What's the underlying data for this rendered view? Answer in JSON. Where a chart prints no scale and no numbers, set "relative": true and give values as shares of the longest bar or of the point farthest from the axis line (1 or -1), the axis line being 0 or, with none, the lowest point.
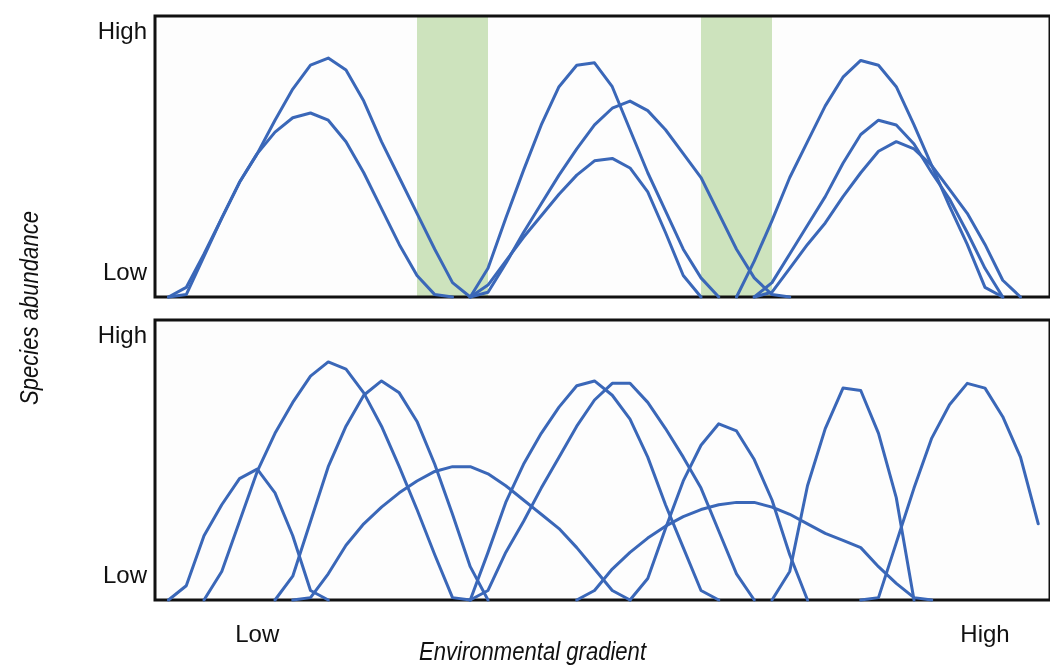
{
  "chart_data": [
    {
      "type": "line",
      "ylabel": "Species abundance",
      "relative": true,
      "annotations": [
        "High",
        "Low"
      ],
      "categories": [
        null,
        null,
        null,
        null,
        null,
        null,
        null,
        null,
        null,
        null,
        null,
        null,
        null,
        null,
        null,
        null,
        null,
        null,
        null,
        null,
        null,
        null,
        null,
        null,
        null,
        null,
        null,
        null,
        null,
        null,
        null,
        null,
        null,
        null,
        null,
        null,
        null,
        null,
        null,
        null,
        null,
        null,
        null,
        null,
        null,
        null,
        null,
        null,
        null,
        null
      ],
      "series": [
        {
          "color": "#3a67b8",
          "values": [
            0,
            0.04,
            0.18,
            0.33,
            0.48,
            0.6,
            0.74,
            0.87,
            0.97,
            1,
            0.95,
            0.82,
            0.65,
            0.5,
            0.35,
            0.2,
            0.06,
            0,
            null,
            null,
            null,
            null,
            null,
            null,
            null,
            null,
            null,
            null,
            null,
            null,
            null,
            null,
            null,
            null,
            null,
            null,
            null,
            null,
            null,
            null,
            null,
            null,
            null,
            null,
            null,
            null,
            null,
            null,
            null,
            null
          ]
        },
        {
          "color": "#3a67b8",
          "values": [
            0,
            0.01,
            0.17,
            0.33,
            0.48,
            0.6,
            0.69,
            0.75,
            0.77,
            0.74,
            0.65,
            0.52,
            0.37,
            0.22,
            0.09,
            0.01,
            0,
            null,
            null,
            null,
            null,
            null,
            null,
            null,
            null,
            null,
            null,
            null,
            null,
            null,
            null,
            null,
            null,
            null,
            null,
            null,
            null,
            null,
            null,
            null,
            null,
            null,
            null,
            null,
            null,
            null,
            null,
            null,
            null,
            null
          ]
        },
        {
          "color": "#3a67b8",
          "values": [
            null,
            null,
            null,
            null,
            null,
            null,
            null,
            null,
            null,
            null,
            null,
            null,
            null,
            null,
            null,
            null,
            null,
            0,
            0.12,
            0.33,
            0.53,
            0.72,
            0.88,
            0.97,
            0.98,
            0.88,
            0.7,
            0.52,
            0.36,
            0.2,
            0.08,
            0,
            null,
            null,
            null,
            null,
            null,
            null,
            null,
            null,
            null,
            null,
            null,
            null,
            null,
            null,
            null,
            null,
            null,
            null
          ]
        },
        {
          "color": "#3a67b8",
          "values": [
            null,
            null,
            null,
            null,
            null,
            null,
            null,
            null,
            null,
            null,
            null,
            null,
            null,
            null,
            null,
            null,
            null,
            0,
            0.02,
            0.14,
            0.27,
            0.39,
            0.51,
            0.62,
            0.72,
            0.79,
            0.82,
            0.78,
            0.7,
            0.6,
            0.5,
            0.35,
            0.2,
            0.08,
            0.01,
            0,
            null,
            null,
            null,
            null,
            null,
            null,
            null,
            null,
            null,
            null,
            null,
            null,
            null,
            null
          ]
        },
        {
          "color": "#3a67b8",
          "values": [
            null,
            null,
            null,
            null,
            null,
            null,
            null,
            null,
            null,
            null,
            null,
            null,
            null,
            null,
            null,
            null,
            null,
            0,
            0.05,
            0.15,
            0.25,
            0.34,
            0.43,
            0.51,
            0.57,
            0.58,
            0.54,
            0.44,
            0.27,
            0.09,
            0,
            null,
            null,
            null,
            null,
            null,
            null,
            null,
            null,
            null,
            null,
            null,
            null,
            null,
            null,
            null,
            null,
            null,
            null,
            null
          ]
        },
        {
          "color": "#3a67b8",
          "values": [
            null,
            null,
            null,
            null,
            null,
            null,
            null,
            null,
            null,
            null,
            null,
            null,
            null,
            null,
            null,
            null,
            null,
            null,
            null,
            null,
            null,
            null,
            null,
            null,
            null,
            null,
            null,
            null,
            null,
            null,
            null,
            null,
            0,
            0.15,
            0.32,
            0.5,
            0.65,
            0.8,
            0.92,
            0.99,
            0.97,
            0.88,
            0.72,
            0.55,
            0.38,
            0.22,
            0.04,
            0,
            null,
            null
          ]
        },
        {
          "color": "#3a67b8",
          "values": [
            null,
            null,
            null,
            null,
            null,
            null,
            null,
            null,
            null,
            null,
            null,
            null,
            null,
            null,
            null,
            null,
            null,
            null,
            null,
            null,
            null,
            null,
            null,
            null,
            null,
            null,
            null,
            null,
            null,
            null,
            null,
            null,
            null,
            0,
            0.06,
            0.18,
            0.3,
            0.42,
            0.56,
            0.68,
            0.74,
            0.72,
            0.64,
            0.52,
            0.41,
            0.27,
            0.12,
            0,
            null,
            null
          ]
        },
        {
          "color": "#3a67b8",
          "values": [
            null,
            null,
            null,
            null,
            null,
            null,
            null,
            null,
            null,
            null,
            null,
            null,
            null,
            null,
            null,
            null,
            null,
            null,
            null,
            null,
            null,
            null,
            null,
            null,
            null,
            null,
            null,
            null,
            null,
            null,
            null,
            null,
            null,
            0,
            0.02,
            0.12,
            0.22,
            0.31,
            0.42,
            0.52,
            0.61,
            0.65,
            0.62,
            0.55,
            0.45,
            0.35,
            0.22,
            0.07,
            0,
            null
          ]
        }
      ]
    },
    {
      "type": "line",
      "xlabel": "Environmental gradient",
      "relative": true,
      "annotations": [
        "High",
        "Low"
      ],
      "categories": [
        null,
        null,
        null,
        null,
        null,
        "Low",
        null,
        null,
        null,
        null,
        null,
        null,
        null,
        null,
        null,
        null,
        null,
        null,
        null,
        null,
        null,
        null,
        null,
        null,
        null,
        null,
        null,
        null,
        null,
        null,
        null,
        null,
        null,
        null,
        null,
        null,
        null,
        null,
        null,
        null,
        null,
        null,
        null,
        null,
        null,
        null,
        "High",
        null,
        null,
        null
      ],
      "series": [
        {
          "color": "#3a67b8",
          "values": [
            0,
            0.06,
            0.27,
            0.4,
            0.51,
            0.55,
            0.45,
            0.27,
            0.04,
            0,
            null,
            null,
            null,
            null,
            null,
            null,
            null,
            null,
            null,
            null,
            null,
            null,
            null,
            null,
            null,
            null,
            null,
            null,
            null,
            null,
            null,
            null,
            null,
            null,
            null,
            null,
            null,
            null,
            null,
            null,
            null,
            null,
            null,
            null,
            null,
            null,
            null,
            null,
            null,
            null
          ]
        },
        {
          "color": "#3a67b8",
          "values": [
            null,
            null,
            0,
            0.12,
            0.33,
            0.54,
            0.7,
            0.83,
            0.94,
            1,
            0.97,
            0.87,
            0.73,
            0.56,
            0.38,
            0.19,
            0.01,
            0,
            null,
            null,
            null,
            null,
            null,
            null,
            null,
            null,
            null,
            null,
            null,
            null,
            null,
            null,
            null,
            null,
            null,
            null,
            null,
            null,
            null,
            null,
            null,
            null,
            null,
            null,
            null,
            null,
            null,
            null,
            null,
            null
          ]
        },
        {
          "color": "#3a67b8",
          "values": [
            null,
            null,
            null,
            null,
            null,
            null,
            0,
            0.1,
            0.33,
            0.56,
            0.73,
            0.86,
            0.92,
            0.87,
            0.75,
            0.57,
            0.36,
            0.14,
            0,
            null,
            null,
            null,
            null,
            null,
            null,
            null,
            null,
            null,
            null,
            null,
            null,
            null,
            null,
            null,
            null,
            null,
            null,
            null,
            null,
            null,
            null,
            null,
            null,
            null,
            null,
            null,
            null,
            null,
            null,
            null
          ]
        },
        {
          "color": "#3a67b8",
          "values": [
            null,
            null,
            null,
            null,
            null,
            null,
            null,
            0,
            0.01,
            0.11,
            0.23,
            0.32,
            0.39,
            0.45,
            0.5,
            0.54,
            0.56,
            0.56,
            0.53,
            0.48,
            0.42,
            0.36,
            0.3,
            0.22,
            0.13,
            0.04,
            0,
            null,
            null,
            null,
            null,
            null,
            null,
            null,
            null,
            null,
            null,
            null,
            null,
            null,
            null,
            null,
            null,
            null,
            null,
            null,
            null,
            null,
            null,
            null
          ]
        },
        {
          "color": "#3a67b8",
          "values": [
            null,
            null,
            null,
            null,
            null,
            null,
            null,
            null,
            null,
            null,
            null,
            null,
            null,
            null,
            null,
            null,
            null,
            0,
            0.2,
            0.41,
            0.57,
            0.7,
            0.81,
            0.9,
            0.92,
            0.86,
            0.76,
            0.6,
            0.4,
            0.22,
            0.04,
            0,
            null,
            null,
            null,
            null,
            null,
            null,
            null,
            null,
            null,
            null,
            null,
            null,
            null,
            null,
            null,
            null,
            null,
            null
          ]
        },
        {
          "color": "#3a67b8",
          "values": [
            null,
            null,
            null,
            null,
            null,
            null,
            null,
            null,
            null,
            null,
            null,
            null,
            null,
            null,
            null,
            null,
            null,
            0,
            0.04,
            0.2,
            0.33,
            0.47,
            0.6,
            0.73,
            0.84,
            0.91,
            0.91,
            0.83,
            0.72,
            0.6,
            0.47,
            0.29,
            0.11,
            0,
            null,
            null,
            null,
            null,
            null,
            null,
            null,
            null,
            null,
            null,
            null,
            null,
            null,
            null,
            null,
            null
          ]
        },
        {
          "color": "#3a67b8",
          "values": [
            null,
            null,
            null,
            null,
            null,
            null,
            null,
            null,
            null,
            null,
            null,
            null,
            null,
            null,
            null,
            null,
            null,
            null,
            null,
            null,
            null,
            null,
            null,
            null,
            null,
            null,
            0,
            0.09,
            0.3,
            0.5,
            0.65,
            0.74,
            0.71,
            0.59,
            0.42,
            0.19,
            0,
            null,
            null,
            null,
            null,
            null,
            null,
            null,
            null,
            null,
            null,
            null,
            null,
            null
          ]
        },
        {
          "color": "#3a67b8",
          "values": [
            null,
            null,
            null,
            null,
            null,
            null,
            null,
            null,
            null,
            null,
            null,
            null,
            null,
            null,
            null,
            null,
            null,
            null,
            null,
            null,
            null,
            null,
            null,
            0,
            0.04,
            0.13,
            0.2,
            0.26,
            0.31,
            0.35,
            0.38,
            0.4,
            0.41,
            0.41,
            0.39,
            0.36,
            0.32,
            0.28,
            0.25,
            0.22,
            0.14,
            0.07,
            0.01,
            0,
            null,
            null,
            null,
            null,
            null,
            null
          ]
        },
        {
          "color": "#3a67b8",
          "values": [
            null,
            null,
            null,
            null,
            null,
            null,
            null,
            null,
            null,
            null,
            null,
            null,
            null,
            null,
            null,
            null,
            null,
            null,
            null,
            null,
            null,
            null,
            null,
            null,
            null,
            null,
            null,
            null,
            null,
            null,
            null,
            null,
            null,
            null,
            0,
            0.12,
            0.48,
            0.72,
            0.89,
            0.88,
            0.7,
            0.43,
            0,
            null,
            null,
            null,
            null,
            null,
            null,
            null
          ]
        },
        {
          "color": "#3a67b8",
          "values": [
            null,
            null,
            null,
            null,
            null,
            null,
            null,
            null,
            null,
            null,
            null,
            null,
            null,
            null,
            null,
            null,
            null,
            null,
            null,
            null,
            null,
            null,
            null,
            null,
            null,
            null,
            null,
            null,
            null,
            null,
            null,
            null,
            null,
            null,
            null,
            null,
            null,
            null,
            null,
            0,
            0.01,
            0.24,
            0.47,
            0.68,
            0.82,
            0.91,
            0.89,
            0.77,
            0.6,
            0.32
          ]
        }
      ]
    }
  ]
}
